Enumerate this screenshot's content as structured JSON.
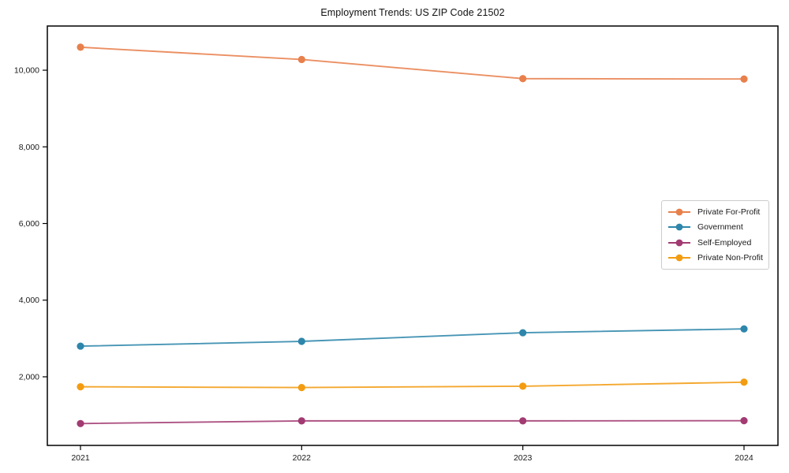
{
  "page": {
    "title": "Employment Trends: US ZIP Code 21502"
  },
  "chart_data": {
    "type": "line",
    "title": "Employment Trends: US ZIP Code 21502",
    "x": [
      2021,
      2022,
      2023,
      2024
    ],
    "x_tick_labels": [
      "2021",
      "2022",
      "2023",
      "2024"
    ],
    "y_ticks": [
      2000,
      4000,
      6000,
      8000,
      10000
    ],
    "y_tick_labels": [
      "2,000",
      "4,000",
      "6,000",
      "8,000",
      "10,000"
    ],
    "ylim": [
      210,
      11153
    ],
    "grid": false,
    "legend_position": "center-right",
    "axis_color": "#000000",
    "series": [
      {
        "name": "Private For-Profit",
        "color": "#E8804C",
        "values": [
          10600,
          10280,
          9780,
          9770
        ]
      },
      {
        "name": "Government",
        "color": "#2E86AB",
        "values": [
          2800,
          2925,
          3150,
          3250
        ]
      },
      {
        "name": "Self-Employed",
        "color": "#A23B72",
        "values": [
          780,
          850,
          850,
          855
        ]
      },
      {
        "name": "Private Non-Profit",
        "color": "#F39C12",
        "values": [
          1740,
          1720,
          1755,
          1860
        ]
      }
    ]
  }
}
